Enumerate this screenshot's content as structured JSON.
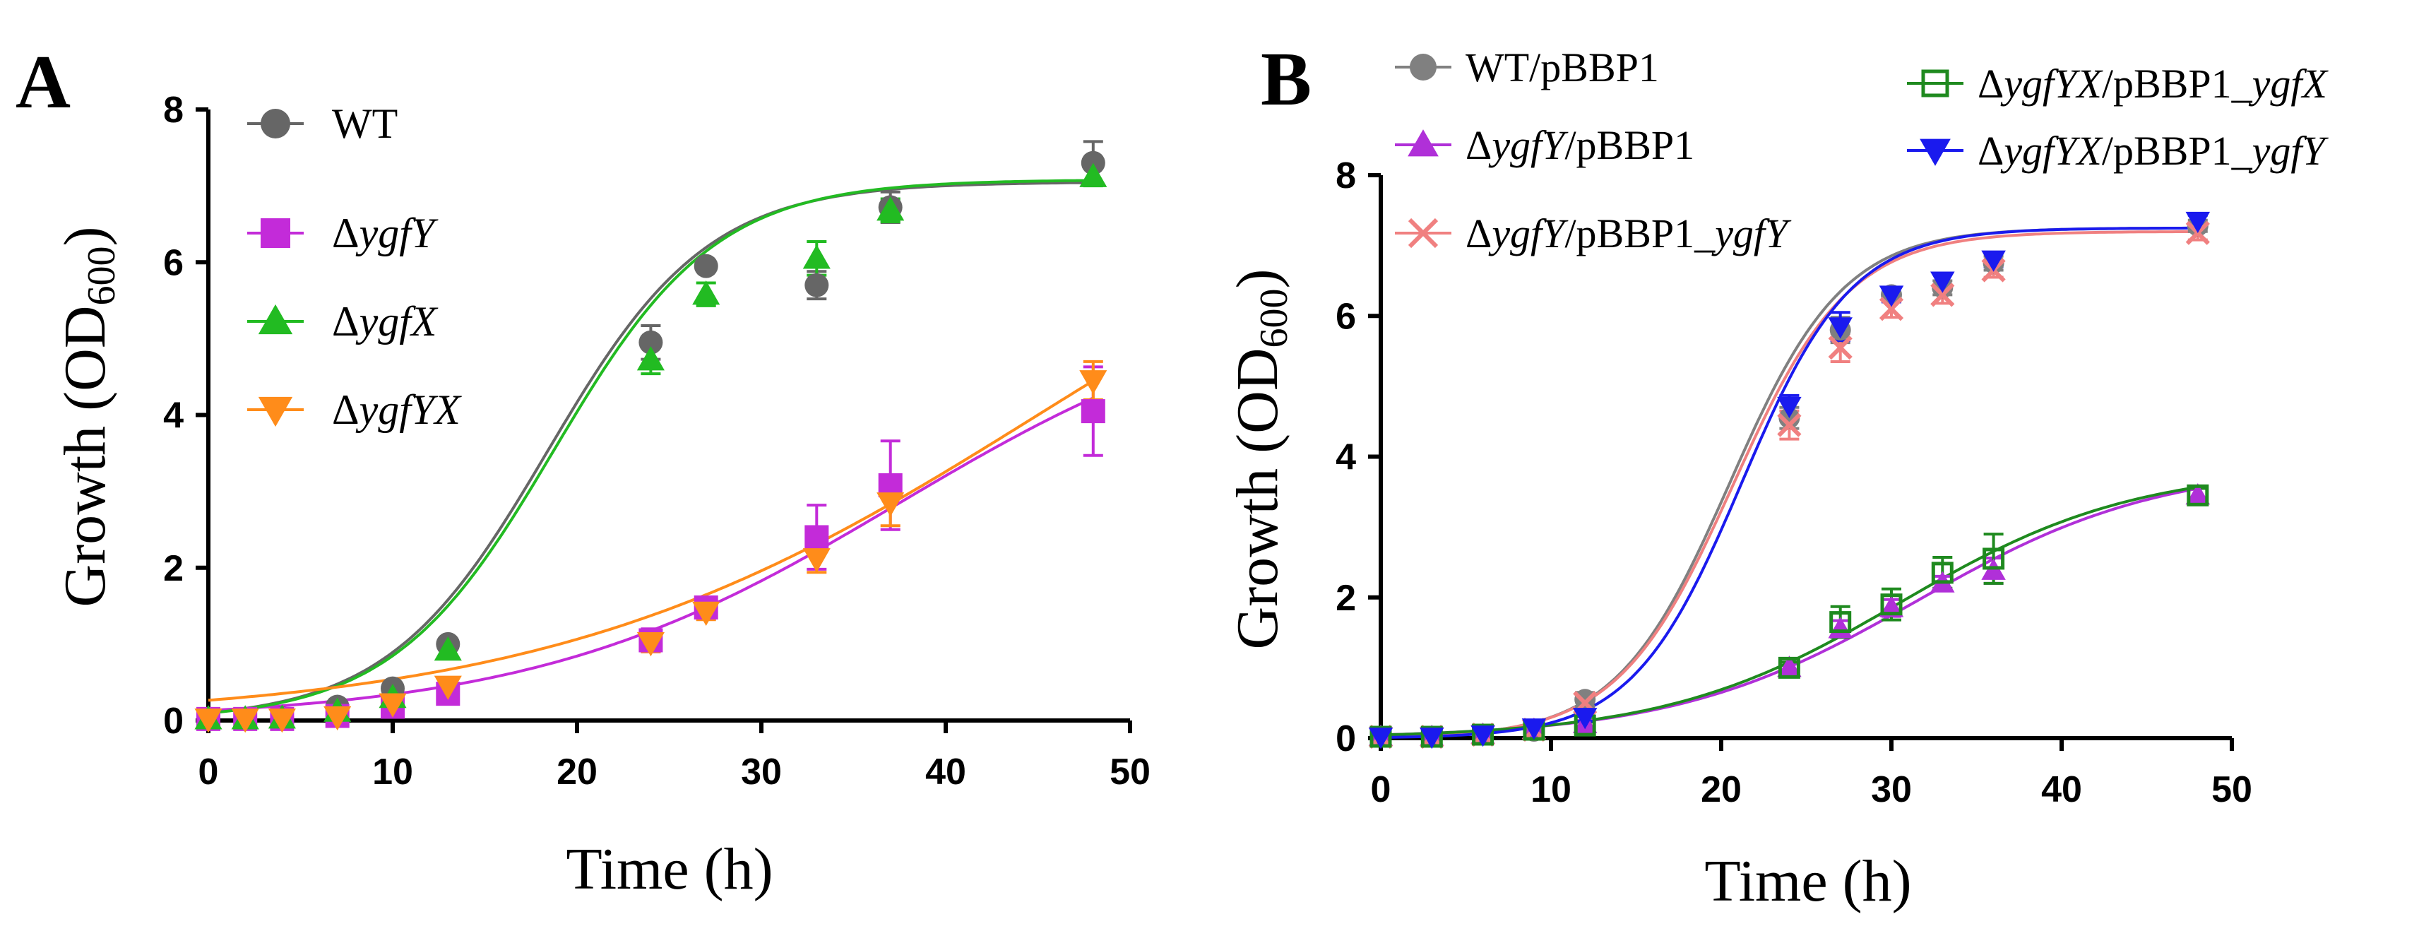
{
  "panels": [
    {
      "label": "A",
      "xlabel": "Time (h)",
      "ylabel_main": "Growth (OD",
      "ylabel_sub": "600",
      "ylabel_close": ")",
      "xticks": [
        "0",
        "10",
        "20",
        "30",
        "40",
        "50"
      ],
      "yticks": [
        "0",
        "2",
        "4",
        "6",
        "8"
      ]
    },
    {
      "label": "B",
      "xlabel": "Time (h)",
      "ylabel_main": "Growth (OD",
      "ylabel_sub": "600",
      "ylabel_close": ")",
      "xticks": [
        "0",
        "10",
        "20",
        "30",
        "40",
        "50"
      ],
      "yticks": [
        "0",
        "2",
        "4",
        "6",
        "8"
      ]
    }
  ],
  "chart_data": [
    {
      "type": "scatter",
      "title": "A",
      "xlabel": "Time (h)",
      "ylabel": "Growth (OD600)",
      "xlim": [
        0,
        50
      ],
      "ylim": [
        0,
        8
      ],
      "legend_position": "top-left",
      "series": [
        {
          "name_prefix": "",
          "name_italic": "",
          "name_suffix": "WT",
          "color": "#666666",
          "marker": "circle",
          "x": [
            0,
            2,
            4,
            7,
            10,
            13,
            24,
            27,
            33,
            37,
            48
          ],
          "y": [
            0.02,
            0.02,
            0.03,
            0.18,
            0.42,
            1.0,
            4.95,
            5.95,
            5.7,
            6.72,
            7.3
          ],
          "err": [
            0.01,
            0.01,
            0.01,
            0.03,
            0.05,
            0.05,
            0.22,
            0.06,
            0.18,
            0.2,
            0.28
          ],
          "fit": {
            "K": 7.05,
            "r": 0.23,
            "t0": 18.4
          }
        },
        {
          "name_prefix": "Δ",
          "name_italic": "ygfY",
          "name_suffix": "",
          "color": "#c32bd9",
          "marker": "square",
          "x": [
            0,
            2,
            4,
            7,
            10,
            13,
            24,
            27,
            33,
            37,
            48
          ],
          "y": [
            0.02,
            0.02,
            0.02,
            0.06,
            0.18,
            0.35,
            1.05,
            1.48,
            2.4,
            3.08,
            4.05
          ],
          "err": [
            0.01,
            0.01,
            0.01,
            0.02,
            0.05,
            0.08,
            0.15,
            0.1,
            0.42,
            0.58,
            0.58
          ],
          "fit": {
            "K": 5.7,
            "r": 0.1,
            "t0": 37.5
          }
        },
        {
          "name_prefix": "Δ",
          "name_italic": "ygfX",
          "name_suffix": "",
          "color": "#22bb22",
          "marker": "triangle-up",
          "x": [
            0,
            2,
            4,
            7,
            10,
            13,
            24,
            27,
            33,
            37,
            48
          ],
          "y": [
            0.02,
            0.02,
            0.03,
            0.12,
            0.3,
            0.92,
            4.72,
            5.58,
            6.05,
            6.68,
            7.12
          ],
          "err": [
            0.01,
            0.01,
            0.01,
            0.03,
            0.05,
            0.08,
            0.18,
            0.15,
            0.22,
            0.15,
            0.12
          ],
          "fit": {
            "K": 7.08,
            "r": 0.228,
            "t0": 18.75
          }
        },
        {
          "name_prefix": "Δ",
          "name_italic": "ygfYX",
          "name_suffix": "",
          "color": "#ff8c1a",
          "marker": "triangle-down",
          "x": [
            0,
            2,
            4,
            7,
            10,
            13,
            24,
            27,
            33,
            37,
            48
          ],
          "y": [
            0.02,
            0.02,
            0.02,
            0.05,
            0.22,
            0.45,
            1.02,
            1.42,
            2.12,
            2.85,
            4.45
          ],
          "err": [
            0.01,
            0.01,
            0.01,
            0.02,
            0.05,
            0.1,
            0.12,
            0.1,
            0.18,
            0.3,
            0.25
          ],
          "fit": {
            "K": 8.0,
            "r": 0.075,
            "t0": 45.0
          }
        }
      ]
    },
    {
      "type": "scatter",
      "title": "B",
      "xlabel": "Time (h)",
      "ylabel": "Growth (OD600)",
      "xlim": [
        0,
        50
      ],
      "ylim": [
        0,
        8
      ],
      "legend_position": "top",
      "series": [
        {
          "name_prefix": "",
          "name_italic": "",
          "name_suffix": "WT/pBBP1",
          "color": "#808080",
          "marker": "circle",
          "x": [
            0,
            3,
            6,
            9,
            12,
            24,
            27,
            30,
            33,
            36,
            48
          ],
          "y": [
            0.02,
            0.02,
            0.05,
            0.1,
            0.55,
            4.55,
            5.8,
            6.3,
            6.4,
            6.75,
            7.28
          ],
          "err": [
            0.01,
            0.01,
            0.02,
            0.03,
            0.1,
            0.15,
            0.18,
            0.1,
            0.1,
            0.1,
            0.08
          ],
          "fit": {
            "K": 7.25,
            "r": 0.3,
            "t0": 20.5
          }
        },
        {
          "name_prefix": "Δ",
          "name_italic": "ygfY",
          "name_suffix": "/pBBP1",
          "color": "#b030d8",
          "marker": "triangle-up",
          "x": [
            0,
            3,
            6,
            9,
            12,
            24,
            27,
            30,
            33,
            36,
            48
          ],
          "y": [
            0.02,
            0.02,
            0.05,
            0.12,
            0.2,
            1.0,
            1.55,
            1.85,
            2.2,
            2.38,
            3.45
          ],
          "err": [
            0.01,
            0.01,
            0.02,
            0.03,
            0.05,
            0.08,
            0.12,
            0.12,
            0.1,
            0.18,
            0.1
          ],
          "fit": {
            "K": 3.9,
            "r": 0.14,
            "t0": 31.5
          }
        },
        {
          "name_prefix": "Δ",
          "name_italic": "ygfY",
          "name_suffix": "/pBBP1_",
          "name_italic2": "ygfY",
          "color": "#f08080",
          "marker": "cross",
          "x": [
            0,
            3,
            6,
            9,
            12,
            24,
            27,
            30,
            33,
            36,
            48
          ],
          "y": [
            0.02,
            0.02,
            0.05,
            0.12,
            0.5,
            4.45,
            5.55,
            6.1,
            6.3,
            6.65,
            7.18
          ],
          "err": [
            0.01,
            0.01,
            0.02,
            0.03,
            0.1,
            0.2,
            0.2,
            0.12,
            0.12,
            0.1,
            0.1
          ],
          "fit": {
            "K": 7.2,
            "r": 0.295,
            "t0": 20.7
          }
        },
        {
          "name_prefix": "Δ",
          "name_italic": "ygfYX",
          "name_suffix": "/pBBP1_",
          "name_italic2": "ygfX",
          "color": "#1f8a1f",
          "marker": "square-open",
          "x": [
            0,
            3,
            6,
            9,
            12,
            24,
            27,
            30,
            33,
            36,
            48
          ],
          "y": [
            0.02,
            0.02,
            0.05,
            0.12,
            0.18,
            1.0,
            1.65,
            1.9,
            2.35,
            2.55,
            3.45
          ],
          "err": [
            0.01,
            0.01,
            0.02,
            0.03,
            0.05,
            0.08,
            0.22,
            0.22,
            0.22,
            0.35,
            0.1
          ],
          "fit": {
            "K": 3.85,
            "r": 0.145,
            "t0": 30.5
          }
        },
        {
          "name_prefix": "Δ",
          "name_italic": "ygfYX",
          "name_suffix": "/pBBP1_",
          "name_italic2": "ygfY",
          "color": "#1a1aee",
          "marker": "triangle-down",
          "x": [
            0,
            3,
            6,
            9,
            12,
            24,
            27,
            30,
            33,
            36,
            48
          ],
          "y": [
            0.02,
            0.02,
            0.05,
            0.15,
            0.3,
            4.72,
            5.85,
            6.3,
            6.5,
            6.8,
            7.35
          ],
          "err": [
            0.01,
            0.01,
            0.02,
            0.03,
            0.06,
            0.15,
            0.2,
            0.1,
            0.1,
            0.1,
            0.08
          ],
          "fit": {
            "K": 7.25,
            "r": 0.31,
            "t0": 21.2
          }
        }
      ]
    }
  ]
}
